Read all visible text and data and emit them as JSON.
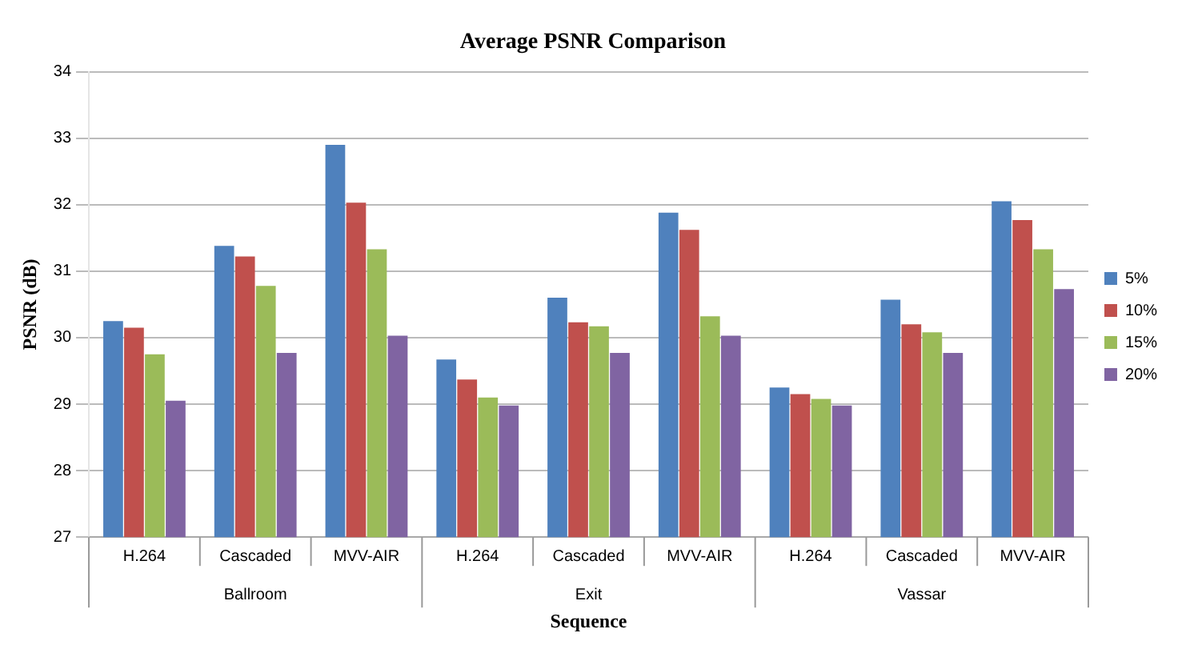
{
  "chart_data": {
    "type": "bar",
    "title": "Average PSNR Comparison",
    "xlabel": "Sequence",
    "ylabel": "PSNR (dB)",
    "categories": [
      "H.264",
      "Cascaded",
      "MVV-AIR",
      "H.264",
      "Cascaded",
      "MVV-AIR",
      "H.264",
      "Cascaded",
      "MVV-AIR"
    ],
    "series": [
      {
        "name": "5%",
        "color": "#4f81bd",
        "values": [
          30.25,
          31.38,
          32.9,
          29.67,
          30.6,
          31.88,
          29.25,
          30.57,
          32.05
        ]
      },
      {
        "name": "10%",
        "color": "#c0504d",
        "values": [
          30.15,
          31.22,
          32.03,
          29.37,
          30.23,
          31.62,
          29.15,
          30.2,
          31.77
        ]
      },
      {
        "name": "15%",
        "color": "#9bbb59",
        "values": [
          29.75,
          30.78,
          31.33,
          29.1,
          30.17,
          30.32,
          29.08,
          30.08,
          31.33
        ]
      },
      {
        "name": "20%",
        "color": "#8064a2",
        "values": [
          29.05,
          29.77,
          30.03,
          28.98,
          29.77,
          30.03,
          28.98,
          29.77,
          30.73
        ]
      }
    ],
    "annotations": [
      "Ballroom",
      "Exit",
      "Vassar"
    ],
    "ylim": [
      27,
      34
    ],
    "yticks": [
      27,
      28,
      29,
      30,
      31,
      32,
      33,
      34
    ],
    "grid": "y",
    "legend": "right"
  }
}
